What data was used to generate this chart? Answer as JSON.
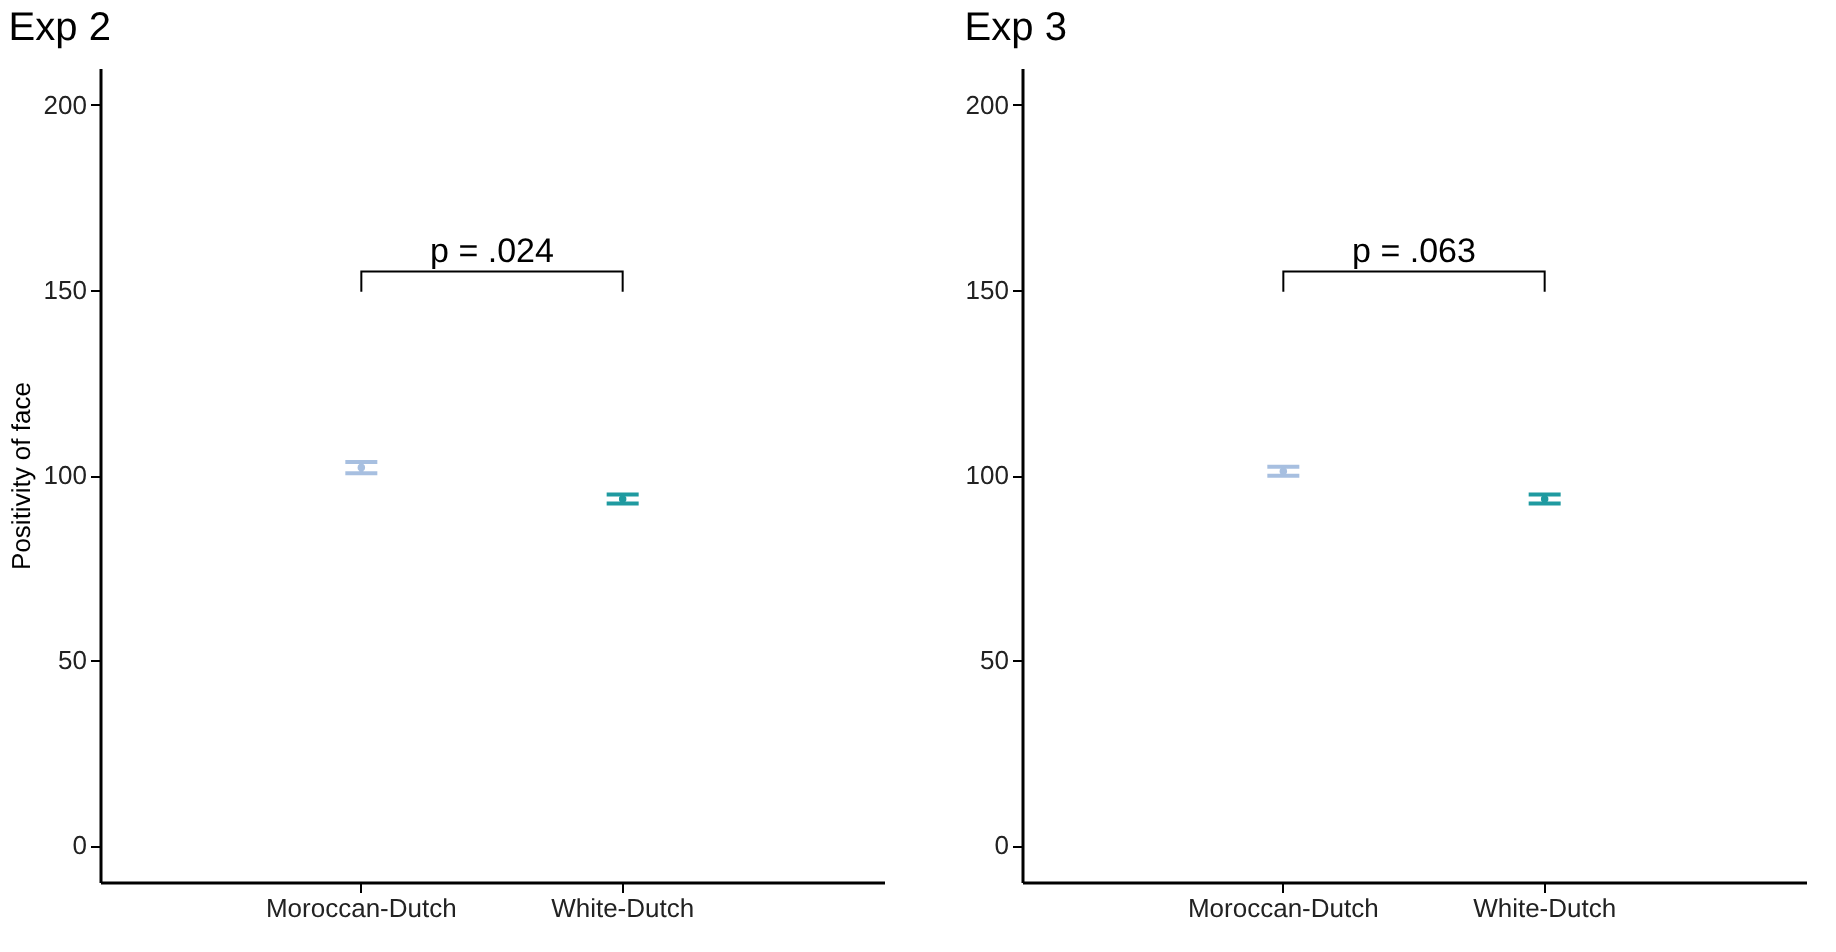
{
  "chart_data": [
    {
      "type": "scatter",
      "title": "Exp 2",
      "ylabel": "Positivity of face",
      "categories": [
        "Moroccan-Dutch",
        "White-Dutch"
      ],
      "values": [
        102,
        93.5
      ],
      "errors": [
        1.5,
        1.2
      ],
      "colors": [
        "#a7bfe0",
        "#1f9aa0"
      ],
      "ylim": [
        -10,
        210
      ],
      "yticks": [
        0,
        50,
        100,
        150,
        200
      ],
      "grid": false,
      "legend": false,
      "marker": "circle",
      "annotations": [
        "p = .024"
      ]
    },
    {
      "type": "scatter",
      "title": "Exp 3",
      "categories": [
        "Moroccan-Dutch",
        "White-Dutch"
      ],
      "values": [
        101,
        93.5
      ],
      "errors": [
        1.2,
        1.2
      ],
      "colors": [
        "#a7bfe0",
        "#1f9aa0"
      ],
      "ylim": [
        -10,
        210
      ],
      "yticks": [
        0,
        50,
        100,
        150,
        200
      ],
      "grid": false,
      "legend": false,
      "marker": "circle",
      "annotations": [
        "p = .063"
      ]
    }
  ]
}
